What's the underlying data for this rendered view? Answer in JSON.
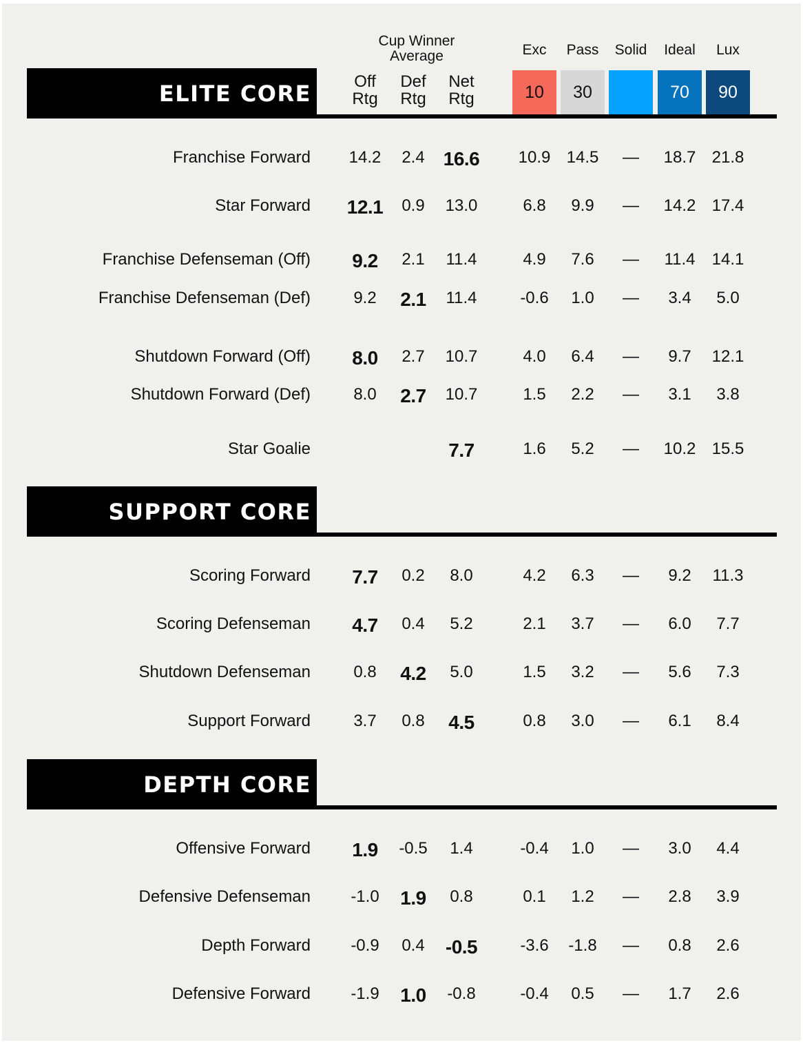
{
  "chart_data": {
    "type": "table",
    "header": {
      "group_label": "Cup Winner Average",
      "columns": [
        {
          "key": "off",
          "label": "Off Rtg"
        },
        {
          "key": "def",
          "label": "Def Rtg"
        },
        {
          "key": "net",
          "label": "Net Rtg"
        }
      ],
      "percentiles": [
        {
          "label": "Exc",
          "value": "10",
          "color": "#f5695a"
        },
        {
          "label": "Pass",
          "value": "30",
          "color": "#d7d7d7"
        },
        {
          "label": "Solid",
          "value": "",
          "color": "#05a2ff"
        },
        {
          "label": "Ideal",
          "value": "70",
          "color": "#0573bc"
        },
        {
          "label": "Lux",
          "value": "90",
          "color": "#0c4a7e"
        }
      ]
    },
    "sections": [
      {
        "title": "ELITE CORE",
        "rows": [
          {
            "label": "Franchise Forward",
            "off": "14.2",
            "def": "2.4",
            "net": "16.6",
            "bold": "net",
            "exc": "10.9",
            "pass": "14.5",
            "solid": "—",
            "ideal": "18.7",
            "lux": "21.8"
          },
          {
            "label": "Star Forward",
            "off": "12.1",
            "def": "0.9",
            "net": "13.0",
            "bold": "off",
            "exc": "6.8",
            "pass": "9.9",
            "solid": "—",
            "ideal": "14.2",
            "lux": "17.4"
          },
          {
            "label": "Franchise Defenseman (Off)",
            "off": "9.2",
            "def": "2.1",
            "net": "11.4",
            "bold": "off",
            "exc": "4.9",
            "pass": "7.6",
            "solid": "—",
            "ideal": "11.4",
            "lux": "14.1"
          },
          {
            "label": "Franchise Defenseman (Def)",
            "off": "9.2",
            "def": "2.1",
            "net": "11.4",
            "bold": "def",
            "exc": "-0.6",
            "pass": "1.0",
            "solid": "—",
            "ideal": "3.4",
            "lux": "5.0"
          },
          {
            "label": "Shutdown Forward (Off)",
            "off": "8.0",
            "def": "2.7",
            "net": "10.7",
            "bold": "off",
            "exc": "4.0",
            "pass": "6.4",
            "solid": "—",
            "ideal": "9.7",
            "lux": "12.1"
          },
          {
            "label": "Shutdown Forward (Def)",
            "off": "8.0",
            "def": "2.7",
            "net": "10.7",
            "bold": "def",
            "exc": "1.5",
            "pass": "2.2",
            "solid": "—",
            "ideal": "3.1",
            "lux": "3.8"
          },
          {
            "label": "Star Goalie",
            "off": "",
            "def": "",
            "net": "7.7",
            "bold": "net",
            "exc": "1.6",
            "pass": "5.2",
            "solid": "—",
            "ideal": "10.2",
            "lux": "15.5"
          }
        ]
      },
      {
        "title": "SUPPORT CORE",
        "rows": [
          {
            "label": "Scoring Forward",
            "off": "7.7",
            "def": "0.2",
            "net": "8.0",
            "bold": "off",
            "exc": "4.2",
            "pass": "6.3",
            "solid": "—",
            "ideal": "9.2",
            "lux": "11.3"
          },
          {
            "label": "Scoring Defenseman",
            "off": "4.7",
            "def": "0.4",
            "net": "5.2",
            "bold": "off",
            "exc": "2.1",
            "pass": "3.7",
            "solid": "—",
            "ideal": "6.0",
            "lux": "7.7"
          },
          {
            "label": "Shutdown Defenseman",
            "off": "0.8",
            "def": "4.2",
            "net": "5.0",
            "bold": "def",
            "exc": "1.5",
            "pass": "3.2",
            "solid": "—",
            "ideal": "5.6",
            "lux": "7.3"
          },
          {
            "label": "Support Forward",
            "off": "3.7",
            "def": "0.8",
            "net": "4.5",
            "bold": "net",
            "exc": "0.8",
            "pass": "3.0",
            "solid": "—",
            "ideal": "6.1",
            "lux": "8.4"
          }
        ]
      },
      {
        "title": "DEPTH CORE",
        "rows": [
          {
            "label": "Offensive Forward",
            "off": "1.9",
            "def": "-0.5",
            "net": "1.4",
            "bold": "off",
            "exc": "-0.4",
            "pass": "1.0",
            "solid": "—",
            "ideal": "3.0",
            "lux": "4.4"
          },
          {
            "label": "Defensive Defenseman",
            "off": "-1.0",
            "def": "1.9",
            "net": "0.8",
            "bold": "def",
            "exc": "0.1",
            "pass": "1.2",
            "solid": "—",
            "ideal": "2.8",
            "lux": "3.9"
          },
          {
            "label": "Depth Forward",
            "off": "-0.9",
            "def": "0.4",
            "net": "-0.5",
            "bold": "net",
            "exc": "-3.6",
            "pass": "-1.8",
            "solid": "—",
            "ideal": "0.8",
            "lux": "2.6"
          },
          {
            "label": "Defensive Forward",
            "off": "-1.9",
            "def": "1.0",
            "net": "-0.8",
            "bold": "def",
            "exc": "-0.4",
            "pass": "0.5",
            "solid": "—",
            "ideal": "1.7",
            "lux": "2.6"
          }
        ]
      }
    ]
  }
}
